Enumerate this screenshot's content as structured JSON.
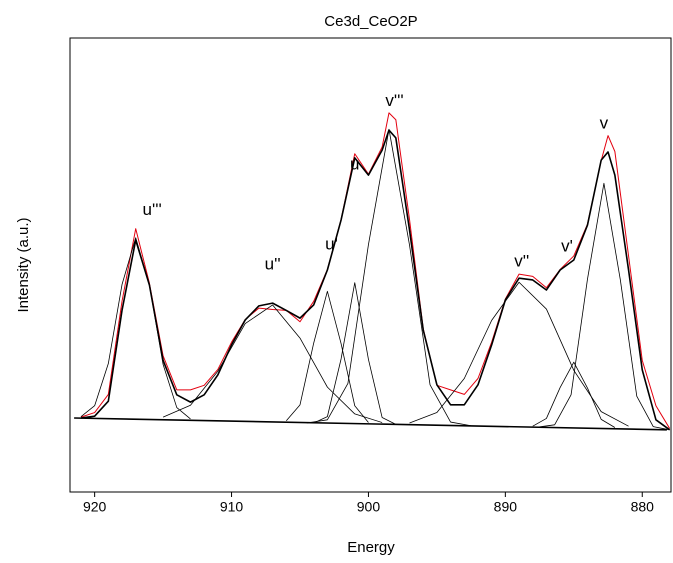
{
  "chart_data": {
    "type": "line",
    "title": "Ce3d_CeO2P",
    "x_label": "Energy",
    "y_label": "Intensity (a.u.)",
    "xlim": [
      921.8,
      877.9
    ],
    "xticks": [
      920,
      910,
      900,
      890,
      880
    ],
    "ylim": [
      0,
      100
    ],
    "series": [
      {
        "color": "#e3000f",
        "width": 1,
        "x": [
          921,
          920,
          919,
          918,
          917,
          916,
          915,
          914,
          913,
          912,
          911,
          910,
          909,
          908,
          907,
          906,
          905,
          904,
          903,
          902,
          901,
          900,
          899,
          898.5,
          898,
          897,
          896,
          895,
          894,
          893,
          892,
          891,
          890,
          889,
          888,
          887,
          886,
          885,
          884,
          883,
          882.5,
          882,
          881,
          880,
          879,
          878
        ],
        "values": [
          16.5,
          17.5,
          21.5,
          42,
          58,
          46,
          30,
          22.5,
          22.5,
          23.5,
          27,
          33,
          38,
          40.5,
          40.2,
          40,
          37.5,
          42,
          49,
          60,
          74.5,
          70,
          76,
          83.5,
          82,
          60,
          36,
          23.5,
          22.5,
          21.5,
          25,
          33,
          42.5,
          48,
          47.5,
          45,
          49,
          52,
          59,
          73,
          78.5,
          75,
          52,
          29,
          19,
          14
        ]
      },
      {
        "color": "#000000",
        "width": 0.8,
        "x": [
          913,
          914,
          915,
          916,
          917,
          918,
          919,
          920,
          921
        ],
        "values": [
          16.1,
          18.6,
          28.1,
          45.6,
          56,
          45.7,
          28.3,
          19,
          16.6
        ]
      },
      {
        "color": "#000000",
        "width": 0.8,
        "x": [
          915,
          913,
          911,
          909,
          907,
          905,
          903,
          901,
          899
        ],
        "values": [
          16.5,
          19.1,
          26.6,
          37.1,
          41.2,
          33.9,
          23.1,
          17.2,
          15.3
        ]
      },
      {
        "color": "#000000",
        "width": 0.8,
        "x": [
          906,
          905,
          904,
          903,
          902,
          901,
          900
        ],
        "values": [
          15.7,
          19.2,
          32.8,
          44.2,
          32.7,
          19,
          15.3
        ]
      },
      {
        "color": "#000000",
        "width": 0.8,
        "x": [
          904,
          903,
          902,
          901,
          900,
          899,
          898
        ],
        "values": [
          15.2,
          16.6,
          29.3,
          46.1,
          29.2,
          16.4,
          14.9
        ]
      },
      {
        "color": "#000000",
        "width": 0.8,
        "x": [
          904.5,
          903,
          901.5,
          900,
          898.5,
          897,
          895.5,
          894,
          892.5
        ],
        "values": [
          15.2,
          15.9,
          23.9,
          54.5,
          79.9,
          54.4,
          23.6,
          15.4,
          14.6
        ]
      },
      {
        "color": "#000000",
        "width": 0.8,
        "x": [
          897,
          895,
          893,
          891,
          889,
          887,
          885,
          883,
          881
        ],
        "values": [
          15.2,
          17.5,
          25,
          37.8,
          46.2,
          40.3,
          26.8,
          17.7,
          14.5
        ]
      },
      {
        "color": "#000000",
        "width": 0.8,
        "x": [
          888,
          887,
          886,
          885,
          884,
          883,
          882
        ],
        "values": [
          14.5,
          16.2,
          23,
          28.6,
          22.9,
          16,
          14.2
        ]
      },
      {
        "color": "#000000",
        "width": 0.8,
        "x": [
          887.6,
          886.4,
          885.2,
          884,
          882.8,
          881.6,
          880.4,
          879.2,
          878
        ],
        "values": [
          14.3,
          14.8,
          21.4,
          46.9,
          68,
          46.7,
          21.1,
          14.4,
          13.7
        ]
      },
      {
        "color": "#000000",
        "width": 1.6,
        "x": [
          921,
          920,
          919,
          918,
          917,
          916,
          915,
          914,
          913,
          912,
          911,
          910,
          909,
          908,
          907,
          906,
          905,
          904,
          903,
          902,
          901,
          900,
          899,
          898.5,
          898,
          897,
          896,
          895,
          894,
          893,
          892,
          891,
          890,
          889,
          888,
          887,
          886,
          885,
          884,
          883,
          882.5,
          882,
          881,
          880,
          879,
          878
        ],
        "values": [
          16.3,
          16.7,
          20,
          40,
          55.5,
          45.6,
          29,
          21.4,
          19.8,
          21.4,
          25.8,
          32.4,
          37.9,
          41,
          41.6,
          40,
          38.3,
          41.2,
          48.9,
          59.9,
          73.6,
          69.8,
          75.3,
          79.7,
          78,
          57.7,
          35.7,
          23.6,
          19.2,
          19.2,
          23.6,
          32.4,
          42.3,
          47.1,
          46.7,
          44.5,
          48.9,
          51.1,
          58.8,
          73.1,
          74.9,
          69.8,
          48.9,
          26.9,
          15.9,
          13.7
        ]
      },
      {
        "color": "#000000",
        "width": 1.6,
        "x": [
          921.5,
          878.2
        ],
        "values": [
          16.3,
          13.7
        ]
      }
    ],
    "annotations": [
      {
        "text": "u'''",
        "x": 915.8,
        "y": 62
      },
      {
        "text": "u''",
        "x": 907,
        "y": 50
      },
      {
        "text": "u'",
        "x": 902.7,
        "y": 54.4
      },
      {
        "text": "u",
        "x": 901,
        "y": 72
      },
      {
        "text": "v'''",
        "x": 898.1,
        "y": 86
      },
      {
        "text": "v''",
        "x": 888.8,
        "y": 50.7
      },
      {
        "text": "v'",
        "x": 885.5,
        "y": 54
      },
      {
        "text": "v",
        "x": 882.8,
        "y": 81
      }
    ]
  }
}
